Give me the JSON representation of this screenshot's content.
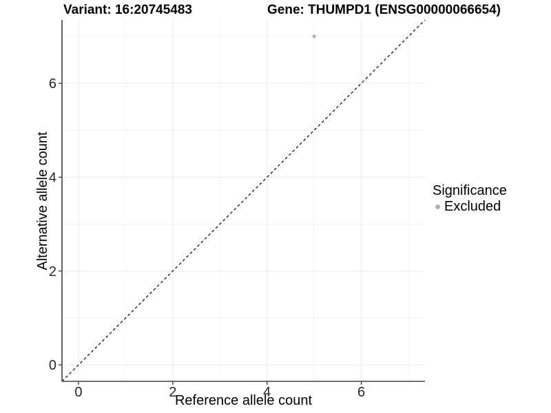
{
  "chart_data": {
    "type": "scatter",
    "title_left": "Variant: 16:20745483",
    "title_right": "Gene: THUMPD1 (ENSG00000066654)",
    "xlabel": "Reference allele count",
    "ylabel": "Alternative allele count",
    "xlim": [
      -0.35,
      7.35
    ],
    "ylim": [
      -0.35,
      7.35
    ],
    "x_ticks": [
      0,
      2,
      4,
      6
    ],
    "y_ticks": [
      0,
      2,
      4,
      6
    ],
    "x_minor_ticks": [
      1,
      3,
      5,
      7
    ],
    "y_minor_ticks": [
      1,
      3,
      5,
      7
    ],
    "grid": true,
    "legend_position": "right",
    "identity_line": {
      "style": "dashed",
      "color": "#000000",
      "from": [
        -0.35,
        -0.35
      ],
      "to": [
        7.35,
        7.35
      ]
    },
    "series": [
      {
        "name": "Excluded",
        "color": "#B3B3B3",
        "points": [
          [
            5,
            7
          ]
        ]
      }
    ],
    "legend": {
      "title": "Significance",
      "items": [
        {
          "label": "Excluded",
          "color": "#B3B3B3",
          "marker": "circle"
        }
      ]
    },
    "colors": {
      "grid_major": "#EBEBEB",
      "grid_minor": "#F2F2F2",
      "axis_line": "#404040",
      "tick_label": "#262626",
      "background": "#FFFFFF"
    }
  }
}
